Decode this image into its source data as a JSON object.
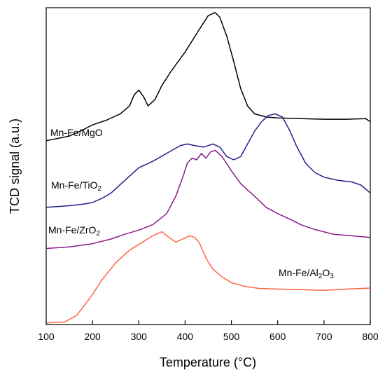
{
  "chart_data": {
    "type": "line",
    "xlabel": "Temperature (°C)",
    "ylabel": "TCD signal (a.u.)",
    "xlim": [
      100,
      800
    ],
    "ylim": [
      0,
      100
    ],
    "grid": false,
    "xticks": [
      100,
      200,
      300,
      400,
      500,
      600,
      700,
      800
    ],
    "x_tick_labels": [
      "100",
      "200",
      "300",
      "400",
      "500",
      "600",
      "700",
      "800"
    ],
    "series": [
      {
        "label_parts": [
          {
            "text": "Mn-Fe/MgO",
            "sub": false
          }
        ],
        "color": "#000000",
        "points": [
          [
            100,
            58
          ],
          [
            150,
            59.5
          ],
          [
            180,
            61.5
          ],
          [
            200,
            63
          ],
          [
            230,
            64.5
          ],
          [
            260,
            66.5
          ],
          [
            280,
            69
          ],
          [
            290,
            72.5
          ],
          [
            300,
            74
          ],
          [
            310,
            72
          ],
          [
            320,
            69
          ],
          [
            335,
            71
          ],
          [
            350,
            75.5
          ],
          [
            370,
            80
          ],
          [
            400,
            86
          ],
          [
            430,
            93
          ],
          [
            450,
            97.5
          ],
          [
            465,
            98.5
          ],
          [
            475,
            97
          ],
          [
            490,
            91
          ],
          [
            505,
            83
          ],
          [
            520,
            74.5
          ],
          [
            535,
            69
          ],
          [
            550,
            66.5
          ],
          [
            575,
            65.5
          ],
          [
            600,
            65.2
          ],
          [
            650,
            65
          ],
          [
            700,
            64.8
          ],
          [
            750,
            64.8
          ],
          [
            790,
            65
          ],
          [
            800,
            64
          ]
        ]
      },
      {
        "label_parts": [
          {
            "text": "Mn-Fe/TiO",
            "sub": false
          },
          {
            "text": "2",
            "sub": true
          }
        ],
        "color": "#1f1f8c",
        "points": [
          [
            100,
            37
          ],
          [
            150,
            37.5
          ],
          [
            180,
            38
          ],
          [
            200,
            38.5
          ],
          [
            220,
            39.8
          ],
          [
            240,
            41.5
          ],
          [
            270,
            45.5
          ],
          [
            300,
            49.5
          ],
          [
            330,
            51.5
          ],
          [
            360,
            54
          ],
          [
            390,
            56.5
          ],
          [
            405,
            57
          ],
          [
            420,
            56.5
          ],
          [
            440,
            56
          ],
          [
            460,
            57
          ],
          [
            475,
            56
          ],
          [
            490,
            53
          ],
          [
            505,
            52
          ],
          [
            520,
            53
          ],
          [
            535,
            57
          ],
          [
            550,
            61
          ],
          [
            565,
            64
          ],
          [
            580,
            66
          ],
          [
            595,
            66.5
          ],
          [
            610,
            65.5
          ],
          [
            625,
            61.5
          ],
          [
            640,
            56.5
          ],
          [
            660,
            51
          ],
          [
            680,
            48
          ],
          [
            700,
            46.5
          ],
          [
            730,
            45.5
          ],
          [
            760,
            45
          ],
          [
            780,
            44
          ],
          [
            800,
            41.5
          ]
        ]
      },
      {
        "label_parts": [
          {
            "text": "Mn-Fe/ZrO",
            "sub": false
          },
          {
            "text": "2",
            "sub": true
          }
        ],
        "color": "#8b1a8b",
        "points": [
          [
            100,
            24
          ],
          [
            150,
            24.5
          ],
          [
            200,
            25.5
          ],
          [
            240,
            27
          ],
          [
            270,
            28.5
          ],
          [
            300,
            29.8
          ],
          [
            330,
            31.5
          ],
          [
            360,
            35
          ],
          [
            380,
            40.5
          ],
          [
            395,
            46.5
          ],
          [
            405,
            51
          ],
          [
            415,
            52.5
          ],
          [
            425,
            52
          ],
          [
            435,
            54
          ],
          [
            445,
            52.5
          ],
          [
            455,
            54.5
          ],
          [
            465,
            55
          ],
          [
            480,
            53
          ],
          [
            500,
            48.5
          ],
          [
            520,
            44.5
          ],
          [
            550,
            40.5
          ],
          [
            575,
            37
          ],
          [
            600,
            35
          ],
          [
            630,
            33
          ],
          [
            650,
            31.5
          ],
          [
            680,
            30
          ],
          [
            720,
            28.5
          ],
          [
            760,
            28
          ],
          [
            800,
            27.5
          ]
        ]
      },
      {
        "label_parts": [
          {
            "text": "Mn-Fe/Al",
            "sub": false
          },
          {
            "text": "2",
            "sub": true
          },
          {
            "text": "O",
            "sub": false
          },
          {
            "text": "3",
            "sub": true
          }
        ],
        "color": "#ff6347",
        "points": [
          [
            100,
            0.5
          ],
          [
            140,
            0.8
          ],
          [
            165,
            2.8
          ],
          [
            185,
            6.5
          ],
          [
            200,
            9.5
          ],
          [
            220,
            14
          ],
          [
            250,
            19.5
          ],
          [
            280,
            23.5
          ],
          [
            310,
            26.2
          ],
          [
            330,
            28
          ],
          [
            350,
            29.3
          ],
          [
            365,
            27.5
          ],
          [
            380,
            26
          ],
          [
            395,
            27
          ],
          [
            410,
            28
          ],
          [
            420,
            27.5
          ],
          [
            430,
            26
          ],
          [
            445,
            21
          ],
          [
            460,
            17.5
          ],
          [
            480,
            15
          ],
          [
            500,
            13.2
          ],
          [
            530,
            12
          ],
          [
            560,
            11.4
          ],
          [
            600,
            11.2
          ],
          [
            650,
            11
          ],
          [
            700,
            10.8
          ],
          [
            750,
            11.2
          ],
          [
            800,
            11.5
          ]
        ]
      }
    ]
  }
}
